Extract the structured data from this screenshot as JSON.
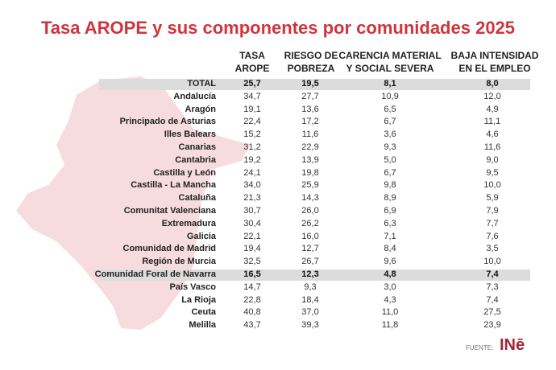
{
  "title": "Tasa AROPE y sus componentes por comunidades 2025",
  "source_label": "FUENTE:",
  "source_logo": "INE",
  "colors": {
    "title": "#d0343d",
    "map": "#f6dcdf",
    "highlight": "#dcdcdc"
  },
  "chart_data": {
    "type": "table",
    "title": "Tasa AROPE y sus componentes por comunidades 2025",
    "columns": [
      "TASA\nAROPE",
      "RIESGO DE\nPOBREZA",
      "CARENCIA MATERIAL\nY SOCIAL SEVERA",
      "BAJA INTENSIDAD\nEN EL EMPLEO"
    ],
    "highlighted_rows": [
      "TOTAL",
      "Comunidad Foral de Navarra"
    ],
    "rows": [
      {
        "label": "TOTAL",
        "values": [
          "25,7",
          "19,5",
          "8,1",
          "8,0"
        ]
      },
      {
        "label": "Andalucía",
        "values": [
          "34,7",
          "27,7",
          "10,9",
          "12,0"
        ]
      },
      {
        "label": "Aragón",
        "values": [
          "19,1",
          "13,6",
          "6,5",
          "4,9"
        ]
      },
      {
        "label": "Principado de Asturias",
        "values": [
          "22,4",
          "17,2",
          "6,7",
          "11,1"
        ]
      },
      {
        "label": "Illes Balears",
        "values": [
          "15,2",
          "11,6",
          "3,6",
          "4,6"
        ]
      },
      {
        "label": "Canarias",
        "values": [
          "31,2",
          "22,9",
          "9,3",
          "11,6"
        ]
      },
      {
        "label": "Cantabria",
        "values": [
          "19,2",
          "13,9",
          "5,0",
          "9,0"
        ]
      },
      {
        "label": "Castilla y León",
        "values": [
          "24,1",
          "19,8",
          "6,7",
          "9,5"
        ]
      },
      {
        "label": "Castilla - La Mancha",
        "values": [
          "34,0",
          "25,9",
          "9,8",
          "10,0"
        ]
      },
      {
        "label": "Cataluña",
        "values": [
          "21,3",
          "14,3",
          "8,9",
          "5,9"
        ]
      },
      {
        "label": "Comunitat Valenciana",
        "values": [
          "30,7",
          "26,0",
          "6,9",
          "7,9"
        ]
      },
      {
        "label": "Extremadura",
        "values": [
          "30,4",
          "26,2",
          "6,3",
          "7,7"
        ]
      },
      {
        "label": "Galicia",
        "values": [
          "22,1",
          "16,0",
          "7,1",
          "7,6"
        ]
      },
      {
        "label": "Comunidad de Madrid",
        "values": [
          "19,4",
          "12,7",
          "8,4",
          "3,5"
        ]
      },
      {
        "label": "Región de Murcia",
        "values": [
          "32,5",
          "26,7",
          "9,6",
          "10,0"
        ]
      },
      {
        "label": "Comunidad Foral de Navarra",
        "values": [
          "16,5",
          "12,3",
          "4,8",
          "7,4"
        ]
      },
      {
        "label": "País Vasco",
        "values": [
          "14,7",
          "9,3",
          "3,0",
          "7,3"
        ]
      },
      {
        "label": "La Rioja",
        "values": [
          "22,8",
          "18,4",
          "4,3",
          "7,4"
        ]
      },
      {
        "label": "Ceuta",
        "values": [
          "40,8",
          "37,0",
          "11,0",
          "27,5"
        ]
      },
      {
        "label": "Melilla",
        "values": [
          "43,7",
          "39,3",
          "11,8",
          "23,9"
        ]
      }
    ]
  }
}
